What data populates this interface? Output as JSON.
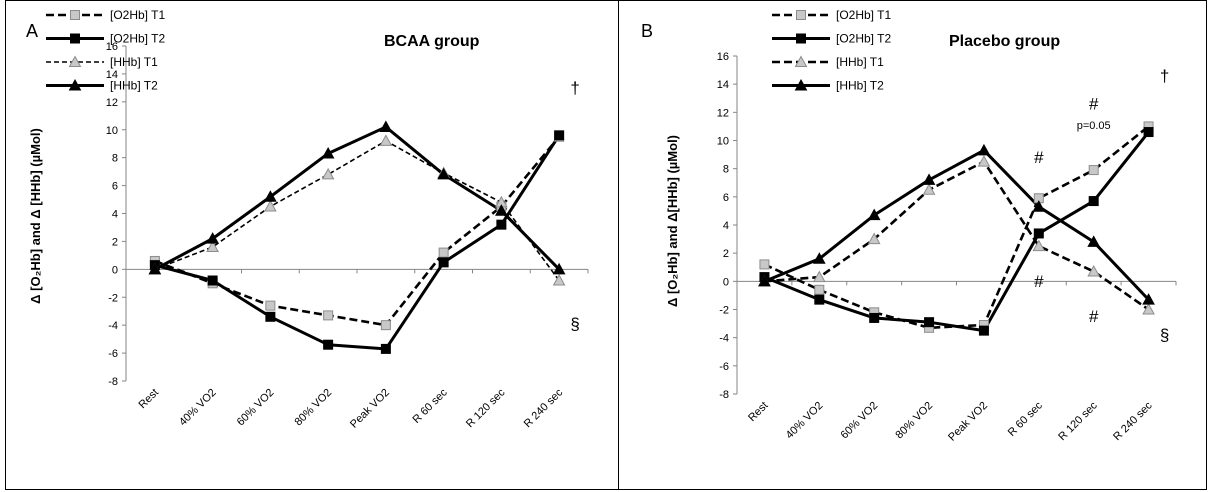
{
  "chart_data": [
    {
      "type": "line",
      "panel_label": "A",
      "title": "BCAA group",
      "ylabel": "Δ [O₂Hb] and Δ [HHb] (µMol)",
      "categories": [
        "Rest",
        "40% VO2",
        "60% VO2",
        "80% VO2",
        "Peak VO2",
        "R 60 sec",
        "R 120 sec",
        "R 240 sec"
      ],
      "yticks": [
        "16",
        "14",
        "12",
        "10",
        "8",
        "6",
        "4",
        "2",
        "0",
        "-2",
        "-4",
        "-6",
        "-8"
      ],
      "ylim": [
        -8,
        16
      ],
      "legend_position": "top-left",
      "series": [
        {
          "name": "[O2Hb] T1",
          "style": "dashed",
          "marker": "square-grey",
          "values": [
            0.6,
            -1.0,
            -2.6,
            -3.3,
            -4.0,
            1.2,
            4.5,
            9.5
          ]
        },
        {
          "name": "[O2Hb] T2",
          "style": "solid",
          "marker": "square-black",
          "values": [
            0.3,
            -0.8,
            -3.4,
            -5.4,
            -5.7,
            0.5,
            3.2,
            9.6
          ]
        },
        {
          "name": "[HHb] T1",
          "style": "dashed-thin",
          "marker": "triangle-grey",
          "values": [
            0.0,
            1.6,
            4.5,
            6.8,
            9.2,
            6.9,
            4.8,
            -0.8
          ]
        },
        {
          "name": "[HHb] T2",
          "style": "solid",
          "marker": "triangle-black",
          "values": [
            0.0,
            2.2,
            5.2,
            8.3,
            10.2,
            6.8,
            4.2,
            0.0
          ]
        }
      ],
      "annotations": [
        {
          "text": "†",
          "category": "R 240 sec",
          "y": 12.6
        },
        {
          "text": "§",
          "category": "R 240 sec",
          "y": -4.3
        }
      ]
    },
    {
      "type": "line",
      "panel_label": "B",
      "title": "Placebo group",
      "ylabel": "Δ [O₂Hb] and Δ[HHb] (µMol)",
      "categories": [
        "Rest",
        "40% VO2",
        "60% VO2",
        "80% VO2",
        "Peak VO2",
        "R 60 sec",
        "R 120 sec",
        "R 240 sec"
      ],
      "yticks": [
        "16",
        "14",
        "12",
        "10",
        "8",
        "6",
        "4",
        "2",
        "0",
        "-2",
        "-4",
        "-6",
        "-8"
      ],
      "ylim": [
        -8,
        16
      ],
      "legend_position": "top-left",
      "series": [
        {
          "name": "[O2Hb] T1",
          "style": "dashed",
          "marker": "square-grey",
          "values": [
            1.2,
            -0.6,
            -2.2,
            -3.3,
            -3.1,
            5.9,
            7.9,
            11.0
          ]
        },
        {
          "name": "[O2Hb] T2",
          "style": "solid",
          "marker": "square-black",
          "values": [
            0.3,
            -1.3,
            -2.6,
            -2.9,
            -3.5,
            3.4,
            5.7,
            10.6
          ]
        },
        {
          "name": "[HHb] T1",
          "style": "dashed",
          "marker": "triangle-grey",
          "values": [
            0.0,
            0.3,
            3.0,
            6.5,
            8.5,
            2.5,
            0.7,
            -2.0
          ]
        },
        {
          "name": "[HHb] T2",
          "style": "solid",
          "marker": "triangle-black",
          "values": [
            0.0,
            1.6,
            4.7,
            7.2,
            9.3,
            5.3,
            2.8,
            -1.3
          ]
        }
      ],
      "annotations": [
        {
          "text": "#",
          "category": "R 60 sec",
          "y": 8.4
        },
        {
          "text": "#",
          "category": "R 60 sec",
          "y": -0.4
        },
        {
          "text": "#",
          "category": "R 120 sec",
          "y": 12.2
        },
        {
          "text": "p=0.05",
          "category": "R 120 sec",
          "y": 10.8
        },
        {
          "text": "#",
          "category": "R 120 sec",
          "y": -2.9
        },
        {
          "text": "†",
          "category": "R 240 sec",
          "y": 14.2
        },
        {
          "text": "§",
          "category": "R 240 sec",
          "y": -4.2
        }
      ]
    }
  ]
}
